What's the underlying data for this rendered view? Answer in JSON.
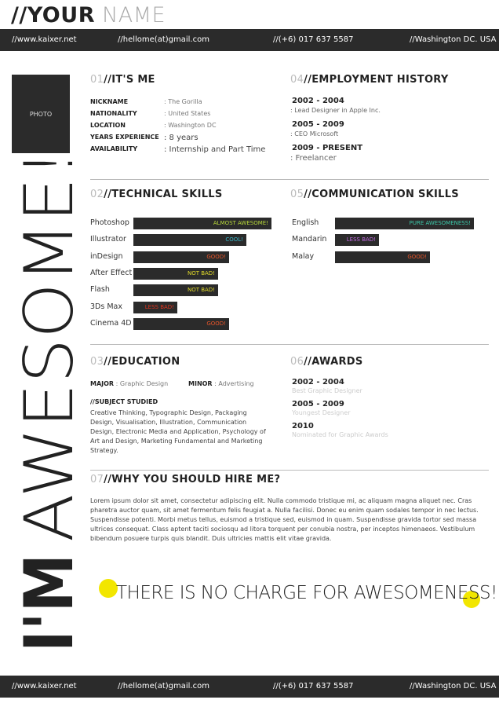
{
  "header": {
    "first": "//YOUR",
    "last": "NAME",
    "website": "//www.kaixer.net",
    "email": "//hellome(at)gmail.com",
    "phone": "//(+6) 017 637 5587",
    "location": "//Washington DC. USA"
  },
  "sidebar": {
    "photo": "PHOTO",
    "headline_a": "I'M",
    "headline_b": "AWESOME!"
  },
  "about": {
    "number": "01",
    "title": "//IT'S ME",
    "rows": [
      [
        "NICKNAME",
        ": The Gorilla"
      ],
      [
        "NATIONALITY",
        ": United States"
      ],
      [
        "LOCATION",
        ": Washington DC"
      ],
      [
        "YEARS EXPERIENCE",
        ": 8 years"
      ],
      [
        "AVAILABILITY",
        ": Internship and Part Time"
      ]
    ]
  },
  "employment": {
    "number": "04",
    "title": "//EMPLOYMENT HISTORY",
    "jobs": [
      {
        "years": "2002 - 2004",
        "role": ": Lead Designer in Apple Inc."
      },
      {
        "years": "2005 - 2009",
        "role": ": CEO Microsoft"
      },
      {
        "years": "2009 - PRESENT",
        "role": ": Freelancer"
      }
    ]
  },
  "technical": {
    "number": "02",
    "title": "//TECHNICAL SKILLS",
    "skills": [
      {
        "name": "Photoshop",
        "rating": "ALMOST AWESOME!"
      },
      {
        "name": "Illustrator",
        "rating": "COOL!"
      },
      {
        "name": "inDesign",
        "rating": "GOOD!"
      },
      {
        "name": "After Effect",
        "rating": "NOT BAD!"
      },
      {
        "name": "Flash",
        "rating": "NOT BAD!"
      },
      {
        "name": "3Ds Max",
        "rating": "LESS BAD!"
      },
      {
        "name": "Cinema 4D",
        "rating": "GOOD!"
      }
    ]
  },
  "communication": {
    "number": "05",
    "title": "//COMMUNICATION SKILLS",
    "skills": [
      {
        "name": "English",
        "rating": "PURE AWESOMENESS!"
      },
      {
        "name": "Mandarin",
        "rating": "LESS BAD!"
      },
      {
        "name": "Malay",
        "rating": "GOOD!"
      }
    ]
  },
  "education": {
    "number": "03",
    "title": "//EDUCATION",
    "major_label": "MAJOR",
    "major": ": Graphic Design",
    "minor_label": "MINOR",
    "minor": ": Advertising",
    "subjects_title": "//SUBJECT STUDIED",
    "subjects": "Creative Thinking, Typographic Design, Packaging Design, Visualisation, Illustration, Communication Design, Electronic Media and Application, Psychology of Art and Design, Marketing Fundamental and Marketing Strategy."
  },
  "awards": {
    "number": "06",
    "title": "//AWARDS",
    "items": [
      {
        "years": "2002 - 2004",
        "desc": "Best Graphic Designer"
      },
      {
        "years": "2005 - 2009",
        "desc": "Youngest Designer"
      },
      {
        "years": "2010",
        "desc": "Nominated for Graphic Awards"
      }
    ]
  },
  "hire": {
    "number": "07",
    "title": "//WHY YOU SHOULD HIRE ME?",
    "body": "Lorem ipsum dolor sit amet, consectetur adipiscing elit. Nulla commodo tristique mi, ac aliquam magna aliquet nec. Cras pharetra auctor quam, sit amet fermentum felis feugiat a. Nulla facilisi. Donec eu enim quam sodales tempor in nec lectus. Suspendisse potenti. Morbi metus tellus, euismod a tristique sed, euismod in quam. Suspendisse gravida tortor sed massa ultrices consequat. Class aptent taciti sociosqu ad litora torquent per conubia nostra, per inceptos himenaeos. Vestibulum bibendum posuere turpis quis blandit. Duis ultricies mattis elit vitae gravida."
  },
  "quote": "THERE IS NO CHARGE FOR AWESOMENESS!",
  "footer": {
    "website": "//www.kaixer.net",
    "email": "//hellome(at)gmail.com",
    "phone": "//(+6) 017 637 5587",
    "location": "//Washington DC. USA"
  }
}
